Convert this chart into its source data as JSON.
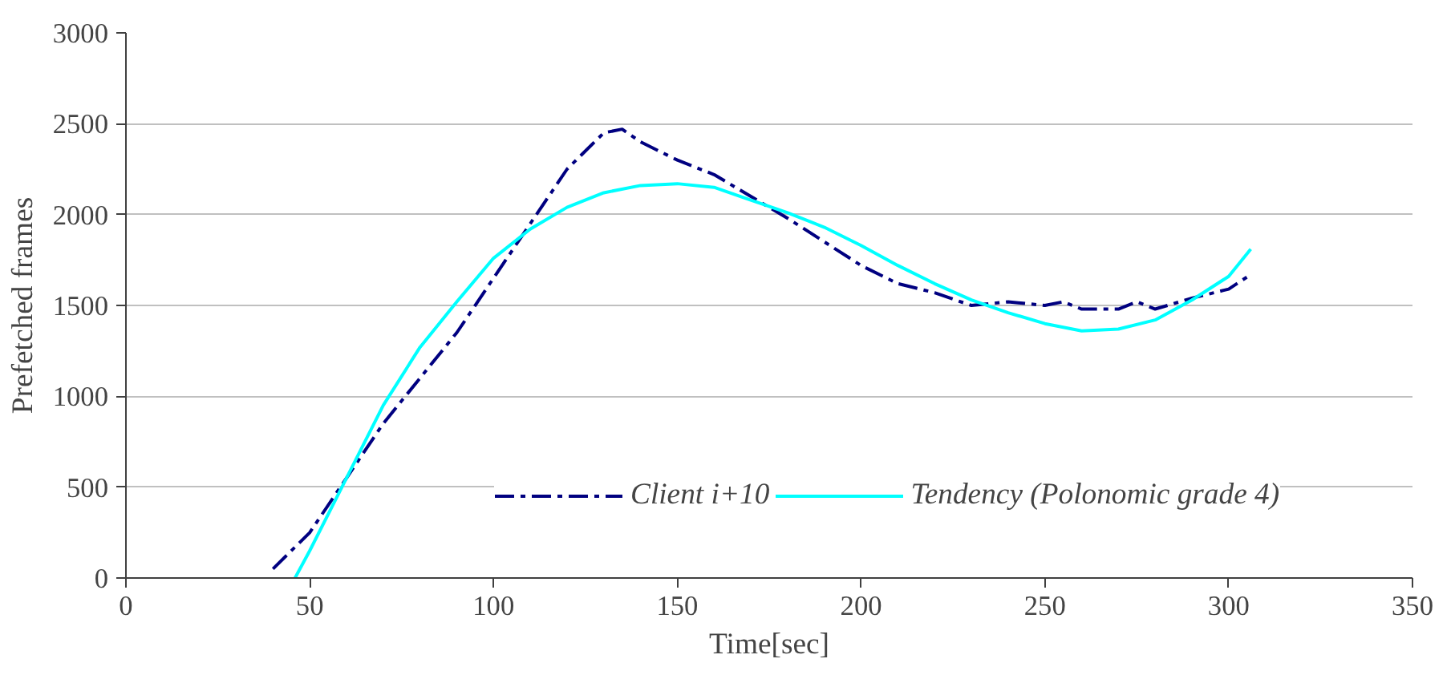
{
  "chart_data": {
    "type": "line",
    "xlabel": "Time[sec]",
    "ylabel": "Prefetched frames",
    "xlim": [
      0,
      350
    ],
    "xticks": [
      0,
      50,
      100,
      150,
      200,
      250,
      300,
      350
    ],
    "ylim": [
      0,
      3000
    ],
    "yticks": [
      0,
      500,
      1000,
      1500,
      2000,
      2500,
      3000
    ],
    "grid": "y",
    "legend": "bottom right",
    "series": [
      {
        "name": "Client i+10",
        "color": "#000080",
        "line_style": "dashdot",
        "x": [
          40,
          50,
          60,
          70,
          80,
          90,
          100,
          110,
          120,
          130,
          135,
          140,
          150,
          160,
          170,
          180,
          190,
          200,
          210,
          220,
          230,
          240,
          250,
          255,
          260,
          270,
          275,
          280,
          290,
          300,
          306
        ],
        "values": [
          50,
          250,
          550,
          850,
          1100,
          1350,
          1650,
          1950,
          2250,
          2450,
          2470,
          2400,
          2300,
          2220,
          2100,
          1980,
          1850,
          1720,
          1620,
          1570,
          1500,
          1520,
          1500,
          1520,
          1480,
          1480,
          1520,
          1480,
          1540,
          1590,
          1670
        ]
      },
      {
        "name": "Tendency (Polonomic grade 4)",
        "color": "#00ffff",
        "line_style": "solid",
        "x": [
          46,
          50,
          60,
          70,
          80,
          90,
          100,
          110,
          120,
          130,
          140,
          150,
          160,
          170,
          180,
          190,
          200,
          210,
          220,
          230,
          240,
          250,
          260,
          270,
          280,
          290,
          300,
          306
        ],
        "values": [
          0,
          150,
          550,
          950,
          1270,
          1520,
          1760,
          1920,
          2040,
          2120,
          2160,
          2170,
          2150,
          2080,
          2010,
          1930,
          1830,
          1720,
          1620,
          1530,
          1460,
          1400,
          1360,
          1370,
          1420,
          1530,
          1660,
          1810
        ]
      }
    ]
  }
}
